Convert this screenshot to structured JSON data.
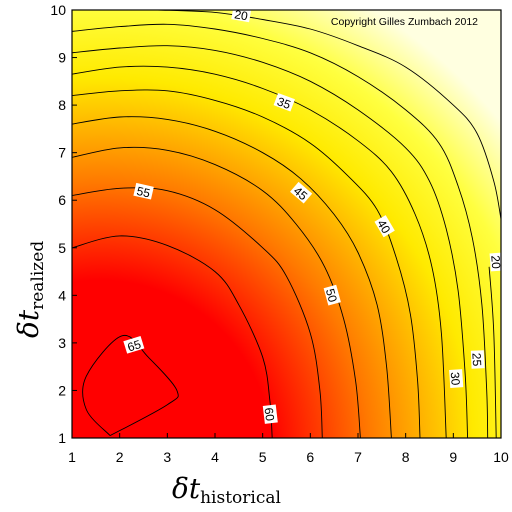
{
  "chart_data": {
    "type": "heatmap",
    "title": "",
    "xlabel": {
      "symbol": "δt",
      "subscript": "historical"
    },
    "ylabel": {
      "symbol": "δt",
      "subscript": "realized"
    },
    "xlim": [
      1,
      10
    ],
    "ylim": [
      1,
      10
    ],
    "x_ticks": [
      "1",
      "2",
      "3",
      "4",
      "5",
      "6",
      "7",
      "8",
      "9",
      "10"
    ],
    "y_ticks": [
      "1",
      "2",
      "3",
      "4",
      "5",
      "6",
      "7",
      "8",
      "9",
      "10"
    ],
    "grid": false,
    "colormap": [
      "#ff0000",
      "#ff8000",
      "#ffff00",
      "#ffffe0"
    ],
    "contours": [
      {
        "level": 65,
        "label": "65",
        "points": [
          [
            1.8,
            1.05
          ],
          [
            3.0,
            1.7
          ],
          [
            3.2,
            2.0
          ],
          [
            2.6,
            2.7
          ],
          [
            2.05,
            3.15
          ],
          [
            1.3,
            2.3
          ],
          [
            1.3,
            1.6
          ],
          [
            1.8,
            1.05
          ]
        ],
        "label_at": [
          2.3,
          2.95
        ]
      },
      {
        "level": 60,
        "label": "60",
        "points": [
          [
            1.0,
            5.0
          ],
          [
            2.0,
            5.25
          ],
          [
            3.0,
            5.05
          ],
          [
            4.0,
            4.5
          ],
          [
            4.5,
            3.8
          ],
          [
            5.0,
            2.7
          ],
          [
            5.15,
            1.8
          ],
          [
            5.2,
            1.0
          ]
        ],
        "label_at": [
          5.15,
          1.5
        ]
      },
      {
        "level": 55,
        "label": "55",
        "points": [
          [
            1.0,
            6.1
          ],
          [
            2.0,
            6.25
          ],
          [
            3.0,
            6.2
          ],
          [
            4.0,
            5.8
          ],
          [
            5.0,
            5.0
          ],
          [
            5.5,
            4.4
          ],
          [
            6.0,
            3.2
          ],
          [
            6.2,
            2.0
          ],
          [
            6.25,
            1.0
          ]
        ],
        "label_at": [
          2.5,
          6.18
        ]
      },
      {
        "level": 50,
        "label": "50",
        "points": [
          [
            1.0,
            6.9
          ],
          [
            2.0,
            7.1
          ],
          [
            3.0,
            7.05
          ],
          [
            4.0,
            6.75
          ],
          [
            5.0,
            6.2
          ],
          [
            5.7,
            5.5
          ],
          [
            6.3,
            4.6
          ],
          [
            6.7,
            3.5
          ],
          [
            6.95,
            2.2
          ],
          [
            7.05,
            1.0
          ]
        ],
        "label_at": [
          6.45,
          4.0
        ]
      },
      {
        "level": 45,
        "label": "45",
        "points": [
          [
            1.0,
            7.6
          ],
          [
            2.0,
            7.75
          ],
          [
            3.0,
            7.7
          ],
          [
            4.0,
            7.45
          ],
          [
            5.0,
            7.0
          ],
          [
            5.8,
            6.45
          ],
          [
            6.5,
            5.7
          ],
          [
            7.0,
            4.9
          ],
          [
            7.4,
            3.8
          ],
          [
            7.6,
            2.5
          ],
          [
            7.7,
            1.0
          ]
        ],
        "label_at": [
          5.8,
          6.15
        ]
      },
      {
        "level": 40,
        "label": "40",
        "points": [
          [
            1.0,
            8.2
          ],
          [
            2.0,
            8.3
          ],
          [
            3.0,
            8.3
          ],
          [
            4.0,
            8.1
          ],
          [
            5.0,
            7.75
          ],
          [
            6.0,
            7.2
          ],
          [
            6.8,
            6.5
          ],
          [
            7.4,
            5.8
          ],
          [
            7.8,
            4.8
          ],
          [
            8.1,
            3.6
          ],
          [
            8.25,
            2.2
          ],
          [
            8.3,
            1.0
          ]
        ],
        "label_at": [
          7.55,
          5.45
        ]
      },
      {
        "level": 35,
        "label": "35",
        "points": [
          [
            1.0,
            8.65
          ],
          [
            2.0,
            8.8
          ],
          [
            3.0,
            8.8
          ],
          [
            4.0,
            8.65
          ],
          [
            5.0,
            8.35
          ],
          [
            6.0,
            7.9
          ],
          [
            7.0,
            7.25
          ],
          [
            7.7,
            6.6
          ],
          [
            8.2,
            5.7
          ],
          [
            8.55,
            4.6
          ],
          [
            8.75,
            3.2
          ],
          [
            8.85,
            1.0
          ]
        ],
        "label_at": [
          5.45,
          8.05
        ]
      },
      {
        "level": 30,
        "label": "30",
        "points": [
          [
            1.0,
            9.1
          ],
          [
            2.0,
            9.2
          ],
          [
            3.0,
            9.25
          ],
          [
            4.0,
            9.15
          ],
          [
            5.0,
            8.9
          ],
          [
            6.0,
            8.5
          ],
          [
            7.0,
            7.9
          ],
          [
            8.0,
            7.1
          ],
          [
            8.5,
            6.4
          ],
          [
            8.85,
            5.4
          ],
          [
            9.1,
            4.1
          ],
          [
            9.25,
            2.3
          ],
          [
            9.3,
            1.0
          ]
        ],
        "label_at": [
          9.05,
          2.25
        ]
      },
      {
        "level": 25,
        "label": "25",
        "points": [
          [
            1.0,
            9.55
          ],
          [
            2.0,
            9.65
          ],
          [
            3.0,
            9.7
          ],
          [
            4.0,
            9.6
          ],
          [
            5.0,
            9.4
          ],
          [
            6.0,
            9.1
          ],
          [
            7.0,
            8.6
          ],
          [
            8.0,
            7.9
          ],
          [
            8.7,
            7.2
          ],
          [
            9.1,
            6.3
          ],
          [
            9.4,
            5.2
          ],
          [
            9.6,
            3.8
          ],
          [
            9.7,
            2.0
          ],
          [
            9.72,
            1.0
          ]
        ],
        "label_at": [
          9.5,
          2.65
        ]
      },
      {
        "level": 20,
        "label": "20",
        "points": [
          [
            2.8,
            10.0
          ],
          [
            4.0,
            9.95
          ],
          [
            5.0,
            9.8
          ],
          [
            6.0,
            9.6
          ],
          [
            7.0,
            9.25
          ],
          [
            8.0,
            8.8
          ],
          [
            9.0,
            8.0
          ],
          [
            9.5,
            7.4
          ],
          [
            9.85,
            6.4
          ],
          [
            10.0,
            5.6
          ]
        ],
        "label_at": [
          4.55,
          9.9
        ]
      },
      {
        "level": 20,
        "label": "20",
        "points": [
          [
            9.75,
            4.6
          ],
          [
            9.85,
            3.2
          ],
          [
            9.9,
            1.0
          ]
        ],
        "label_at": [
          9.9,
          4.7
        ]
      }
    ],
    "annotation": "Copyright Gilles Zumbach 2012"
  }
}
